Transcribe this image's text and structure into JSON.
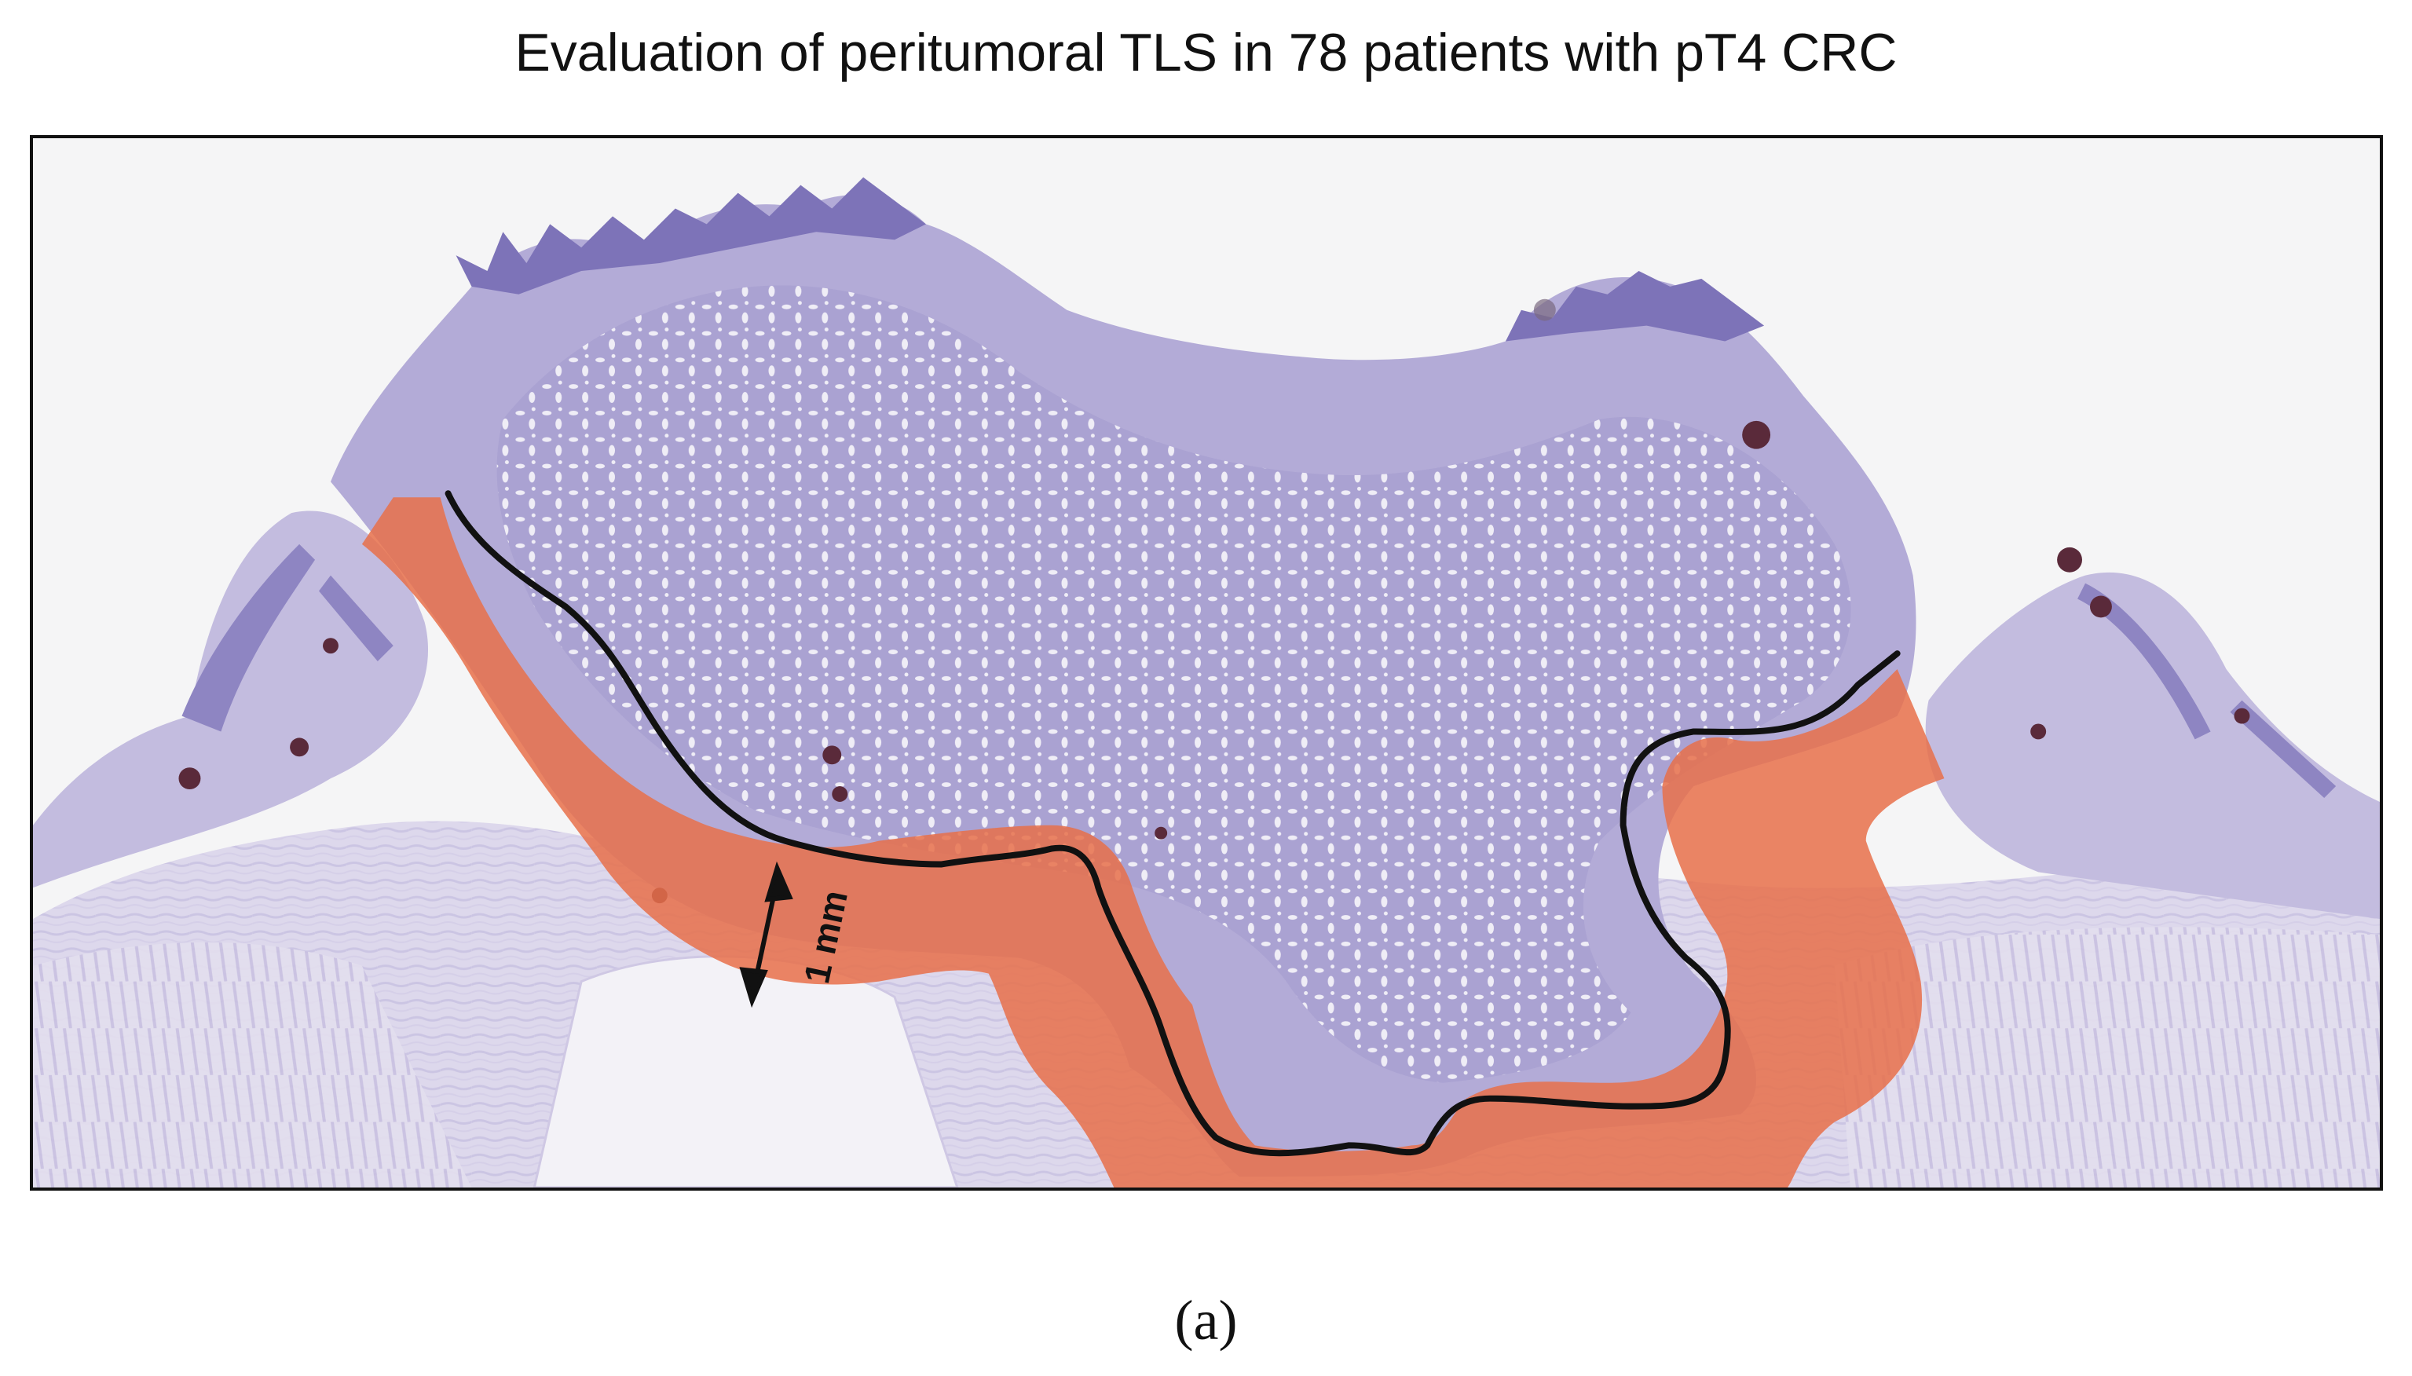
{
  "figure": {
    "title": "Evaluation of peritumoral TLS in 78 patients with pT4 CRC",
    "panel_label": "(a)"
  },
  "annotation": {
    "scale_label": "1 mm"
  },
  "colors": {
    "background": "#ffffff",
    "slide_background": "#f5f5f6",
    "tissue_light": "#ddd8ea",
    "tissue": "#b9b2d8",
    "tumor": "#8f86c4",
    "tls_spot": "#5a2a3a",
    "peritumoral_zone": "#e8704a",
    "boundary": "#111111"
  }
}
